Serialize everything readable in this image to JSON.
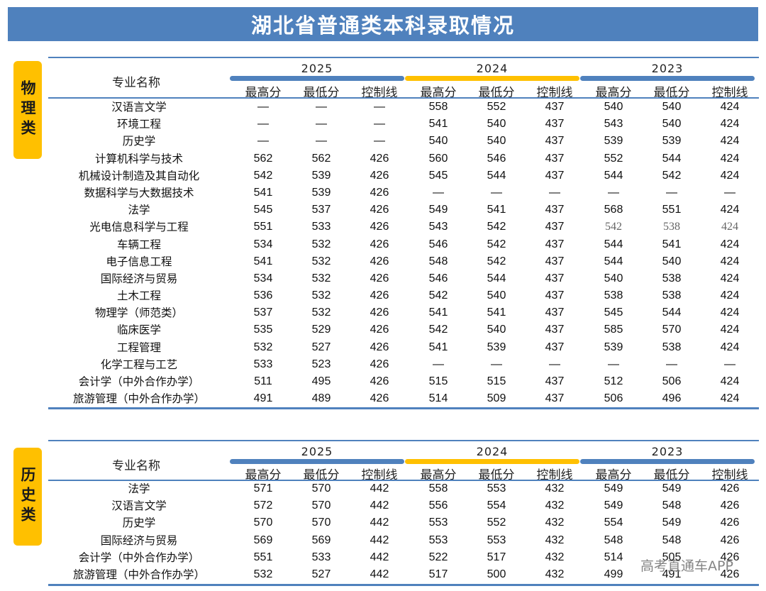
{
  "title": "湖北省普通类本科录取情况",
  "watermark": "高考直通车APP",
  "col_major": "专业名称",
  "years": [
    "2025",
    "2024",
    "2023"
  ],
  "metrics": [
    "最高分",
    "最低分",
    "控制线"
  ],
  "colors": {
    "banner": "#4f81bd",
    "side": "#ffc000",
    "bar_2025": "#4f81bd",
    "bar_2024": "#ffc000",
    "bar_2023": "#4f81bd"
  },
  "physics": {
    "label": "物理类",
    "rows": [
      {
        "name": "汉语言文学",
        "v": [
          "—",
          "—",
          "—",
          "558",
          "552",
          "437",
          "540",
          "540",
          "424"
        ]
      },
      {
        "name": "环境工程",
        "v": [
          "—",
          "—",
          "—",
          "541",
          "540",
          "437",
          "543",
          "540",
          "424"
        ]
      },
      {
        "name": "历史学",
        "v": [
          "—",
          "—",
          "—",
          "540",
          "540",
          "437",
          "539",
          "539",
          "424"
        ]
      },
      {
        "name": "计算机科学与技术",
        "v": [
          "562",
          "562",
          "426",
          "560",
          "546",
          "437",
          "552",
          "544",
          "424"
        ]
      },
      {
        "name": "机械设计制造及其自动化",
        "v": [
          "542",
          "539",
          "426",
          "545",
          "544",
          "437",
          "544",
          "542",
          "424"
        ]
      },
      {
        "name": "数据科学与大数据技术",
        "v": [
          "541",
          "539",
          "426",
          "—",
          "—",
          "—",
          "—",
          "—",
          "—"
        ]
      },
      {
        "name": "法学",
        "v": [
          "545",
          "537",
          "426",
          "549",
          "541",
          "437",
          "568",
          "551",
          "424"
        ]
      },
      {
        "name": "光电信息科学与工程",
        "v": [
          "551",
          "533",
          "426",
          "543",
          "542",
          "437",
          "542",
          "538",
          "424"
        ]
      },
      {
        "name": "车辆工程",
        "v": [
          "534",
          "532",
          "426",
          "546",
          "542",
          "437",
          "544",
          "541",
          "424"
        ]
      },
      {
        "name": "电子信息工程",
        "v": [
          "541",
          "532",
          "426",
          "548",
          "542",
          "437",
          "544",
          "540",
          "424"
        ]
      },
      {
        "name": "国际经济与贸易",
        "v": [
          "534",
          "532",
          "426",
          "546",
          "544",
          "437",
          "540",
          "538",
          "424"
        ]
      },
      {
        "name": "土木工程",
        "v": [
          "536",
          "532",
          "426",
          "542",
          "540",
          "437",
          "538",
          "538",
          "424"
        ]
      },
      {
        "name": "物理学（师范类）",
        "v": [
          "537",
          "532",
          "426",
          "541",
          "541",
          "437",
          "545",
          "544",
          "424"
        ]
      },
      {
        "name": "临床医学",
        "v": [
          "535",
          "529",
          "426",
          "542",
          "540",
          "437",
          "585",
          "570",
          "424"
        ]
      },
      {
        "name": "工程管理",
        "v": [
          "532",
          "527",
          "426",
          "541",
          "539",
          "437",
          "539",
          "538",
          "424"
        ]
      },
      {
        "name": "化学工程与工艺",
        "v": [
          "533",
          "523",
          "426",
          "—",
          "—",
          "—",
          "—",
          "—",
          "—"
        ]
      },
      {
        "name": "会计学（中外合作办学）",
        "v": [
          "511",
          "495",
          "426",
          "515",
          "515",
          "437",
          "512",
          "506",
          "424"
        ]
      },
      {
        "name": "旅游管理（中外合作办学）",
        "v": [
          "491",
          "489",
          "426",
          "514",
          "509",
          "437",
          "506",
          "496",
          "424"
        ]
      }
    ]
  },
  "history": {
    "label": "历史类",
    "rows": [
      {
        "name": "法学",
        "v": [
          "571",
          "570",
          "442",
          "558",
          "553",
          "432",
          "549",
          "549",
          "426"
        ]
      },
      {
        "name": "汉语言文学",
        "v": [
          "572",
          "570",
          "442",
          "556",
          "554",
          "432",
          "549",
          "548",
          "426"
        ]
      },
      {
        "name": "历史学",
        "v": [
          "570",
          "570",
          "442",
          "553",
          "552",
          "432",
          "554",
          "549",
          "426"
        ]
      },
      {
        "name": "国际经济与贸易",
        "v": [
          "569",
          "569",
          "442",
          "553",
          "553",
          "432",
          "548",
          "548",
          "426"
        ]
      },
      {
        "name": "会计学（中外合作办学）",
        "v": [
          "551",
          "533",
          "442",
          "522",
          "517",
          "432",
          "514",
          "505",
          "426"
        ]
      },
      {
        "name": "旅游管理（中外合作办学）",
        "v": [
          "532",
          "527",
          "442",
          "517",
          "500",
          "432",
          "499",
          "491",
          "426"
        ]
      }
    ]
  }
}
